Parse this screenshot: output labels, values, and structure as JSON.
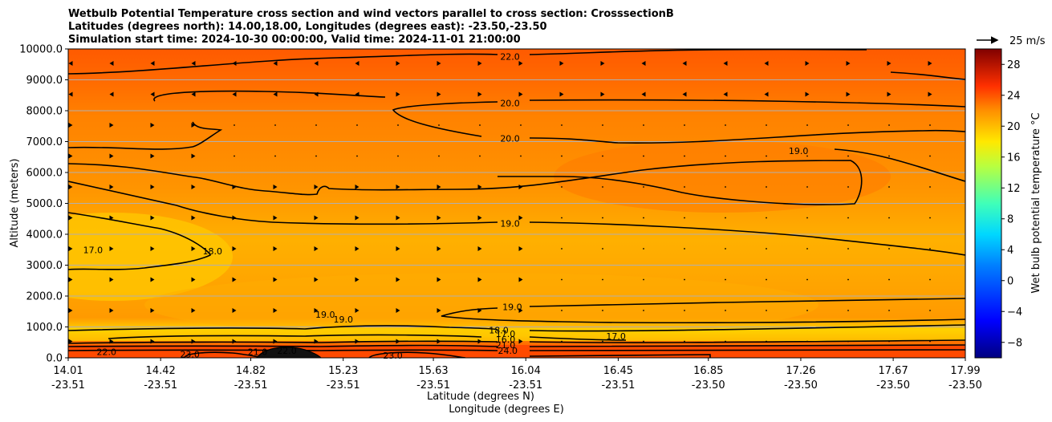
{
  "chart_data": {
    "type": "contourf",
    "title_lines": [
      "Wetbulb Potential Temperature cross section and wind vectors parallel to cross section: CrosssectionB",
      "Latitudes (degrees north): 14.00,18.00, Longitudes (degrees east): -23.50,-23.50",
      "Simulation start time: 2024-10-30 00:00:00, Valid time: 2024-11-01 21:00:00"
    ],
    "xlabel": "Latitude (degrees N)",
    "xlabel2": "Longitude (degrees E)",
    "ylabel": "Altitude (meters)",
    "x_ticks": [
      {
        "lat": "14.01",
        "lon": "-23.51"
      },
      {
        "lat": "14.42",
        "lon": "-23.51"
      },
      {
        "lat": "14.82",
        "lon": "-23.51"
      },
      {
        "lat": "15.23",
        "lon": "-23.51"
      },
      {
        "lat": "15.63",
        "lon": "-23.51"
      },
      {
        "lat": "16.04",
        "lon": "-23.51"
      },
      {
        "lat": "16.45",
        "lon": "-23.51"
      },
      {
        "lat": "16.85",
        "lon": "-23.50"
      },
      {
        "lat": "17.26",
        "lon": "-23.50"
      },
      {
        "lat": "17.67",
        "lon": "-23.50"
      },
      {
        "lat": "17.99",
        "lon": "-23.50"
      }
    ],
    "x_tick_positions": [
      14.01,
      14.42,
      14.82,
      15.23,
      15.63,
      16.04,
      16.45,
      16.85,
      17.26,
      17.67,
      17.99
    ],
    "xlim": [
      14.01,
      17.99
    ],
    "y_ticks": [
      "0.0",
      "1000.0",
      "2000.0",
      "3000.0",
      "4000.0",
      "5000.0",
      "6000.0",
      "7000.0",
      "8000.0",
      "9000.0",
      "10000.0"
    ],
    "ylim": [
      0,
      10000
    ],
    "grid_y": true,
    "colorbar": {
      "label": "Wet bulb potential temperature $^\\circ$C",
      "ticks": [
        "−8",
        "−4",
        "0",
        "4",
        "8",
        "12",
        "16",
        "20",
        "24",
        "28"
      ],
      "range": [
        -10,
        30
      ]
    },
    "wind_key": {
      "label": "25 m/s"
    },
    "contour_labels": [
      {
        "text": "22.0",
        "x": 15.97,
        "y": 9750
      },
      {
        "text": "20.0",
        "x": 15.97,
        "y": 8250
      },
      {
        "text": "20.0",
        "x": 15.97,
        "y": 7100
      },
      {
        "text": "19.0",
        "x": 17.25,
        "y": 6700
      },
      {
        "text": "19.0",
        "x": 15.97,
        "y": 4350
      },
      {
        "text": "17.0",
        "x": 14.12,
        "y": 3500
      },
      {
        "text": "18.0",
        "x": 14.65,
        "y": 3450
      },
      {
        "text": "19.0",
        "x": 15.15,
        "y": 1400
      },
      {
        "text": "19.0",
        "x": 15.23,
        "y": 1250
      },
      {
        "text": "19.0",
        "x": 15.98,
        "y": 1650
      },
      {
        "text": "18.0",
        "x": 15.92,
        "y": 900
      },
      {
        "text": "17.0",
        "x": 15.95,
        "y": 780
      },
      {
        "text": "16.0",
        "x": 15.95,
        "y": 600
      },
      {
        "text": "21.0",
        "x": 15.95,
        "y": 420
      },
      {
        "text": "24.0",
        "x": 15.96,
        "y": 230
      },
      {
        "text": "17.0",
        "x": 16.44,
        "y": 700
      },
      {
        "text": "22.0",
        "x": 14.18,
        "y": 200
      },
      {
        "text": "23.0",
        "x": 14.55,
        "y": 120
      },
      {
        "text": "21.0",
        "x": 14.85,
        "y": 200
      },
      {
        "text": "22.0",
        "x": 14.98,
        "y": 230
      },
      {
        "text": "23.0",
        "x": 15.45,
        "y": 80
      }
    ]
  }
}
